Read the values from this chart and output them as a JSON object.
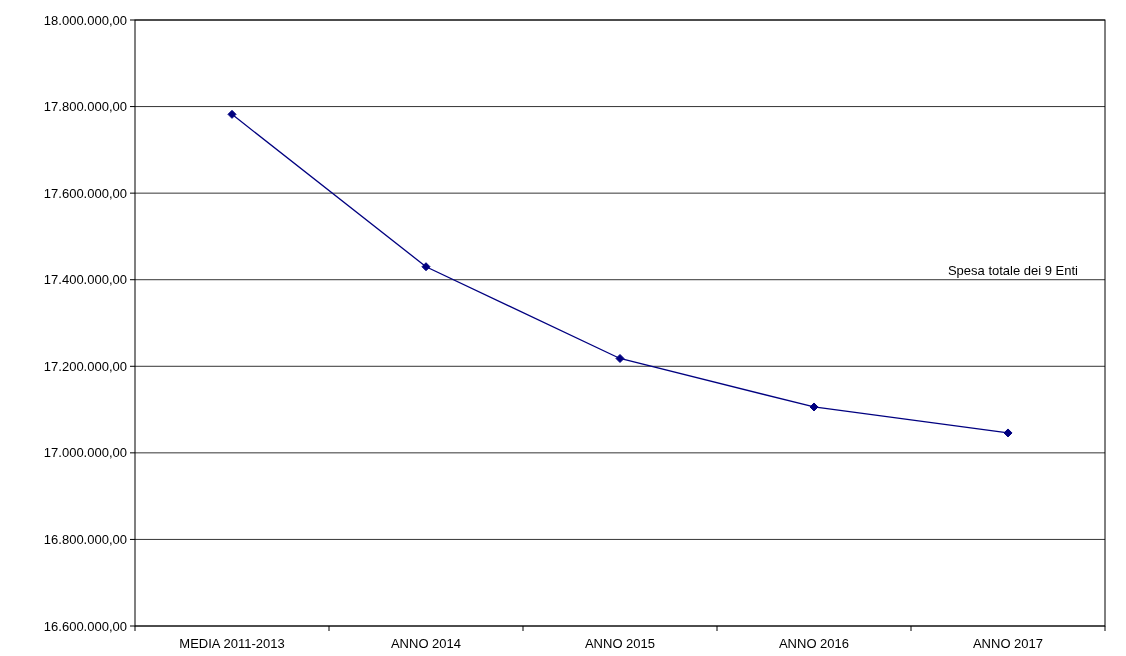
{
  "chart_data": {
    "type": "line",
    "categories": [
      "MEDIA 2011-2013",
      "ANNO 2014",
      "ANNO 2015",
      "ANNO 2016",
      "ANNO 2017"
    ],
    "series": [
      {
        "color": "#000080",
        "values": [
          17782000,
          17430000,
          17218000,
          17106000,
          17046000
        ]
      }
    ],
    "ylim": [
      16600000,
      18000000
    ],
    "yticks": [
      {
        "value": 16600000,
        "label": "16.600.000,00"
      },
      {
        "value": 16800000,
        "label": "16.800.000,00"
      },
      {
        "value": 17000000,
        "label": "17.000.000,00"
      },
      {
        "value": 17200000,
        "label": "17.200.000,00"
      },
      {
        "value": 17400000,
        "label": "17.400.000,00"
      },
      {
        "value": 17600000,
        "label": "17.600.000,00"
      },
      {
        "value": 17800000,
        "label": "17.800.000,00"
      },
      {
        "value": 18000000,
        "label": "18.000.000,00"
      }
    ],
    "grid": "y",
    "marker": "diamond",
    "line_style": "solid",
    "annotations": [
      "Spesa totale dei 9 Enti"
    ]
  }
}
